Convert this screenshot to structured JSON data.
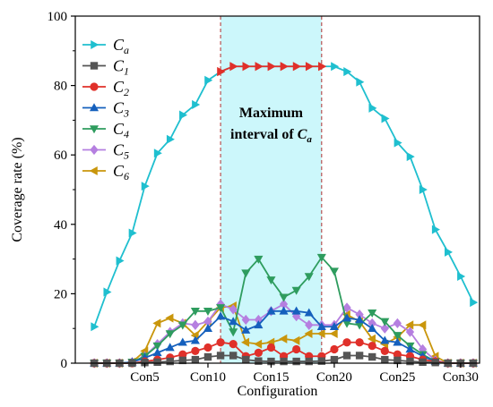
{
  "chart_data": {
    "type": "line",
    "xlabel": "Configuration",
    "ylabel": "Coverage rate (%)",
    "ylim": [
      0,
      100
    ],
    "xlim": [
      -0.5,
      31.5
    ],
    "yticks": [
      0,
      20,
      40,
      60,
      80,
      100
    ],
    "xticks": [
      {
        "x": 5,
        "label": "Con5"
      },
      {
        "x": 10,
        "label": "Con10"
      },
      {
        "x": 15,
        "label": "Con15"
      },
      {
        "x": 20,
        "label": "Con20"
      },
      {
        "x": 25,
        "label": "Con25"
      },
      {
        "x": 30,
        "label": "Con30"
      }
    ],
    "legend_position": "top-left",
    "highlight": {
      "x_start": 11,
      "x_end": 19,
      "color": "#ccf7fb",
      "label_line1": "Maximum",
      "label_line2": "interval of ",
      "label_symbol": "C",
      "label_sub": "a"
    },
    "series": [
      {
        "symbol": "C",
        "sub": "a",
        "color": "#1fbfcf",
        "marker": "tri-right",
        "values": [
          10.5,
          20.5,
          29.5,
          37.5,
          51,
          60.5,
          64.5,
          71.5,
          74.5,
          81.5,
          84,
          85.5,
          85.5,
          85.5,
          85.5,
          85.5,
          85.5,
          85.5,
          85.5,
          85.5,
          84,
          81,
          73.5,
          70.5,
          63.5,
          59.5,
          50,
          38.5,
          32,
          25,
          17.5
        ],
        "highlight_color": "#e0302a"
      },
      {
        "symbol": "C",
        "sub": "1",
        "color": "#555555",
        "marker": "square",
        "values": [
          0,
          0,
          0,
          0,
          0.2,
          0.3,
          0.5,
          0.8,
          1,
          1.8,
          2.2,
          2.2,
          1,
          0.6,
          0.5,
          0.5,
          0.5,
          0.5,
          0.6,
          1,
          2.2,
          2.2,
          1.8,
          1,
          0.8,
          0.5,
          0.3,
          0.2,
          0,
          0,
          0
        ]
      },
      {
        "symbol": "C",
        "sub": "2",
        "color": "#e0302a",
        "marker": "circle",
        "values": [
          0,
          0,
          0,
          0,
          0.5,
          1,
          1.6,
          2.5,
          3.5,
          4.5,
          6,
          5.5,
          2,
          3,
          4.5,
          2,
          4,
          2,
          2,
          4,
          6,
          6,
          5,
          3.5,
          2.5,
          2,
          1,
          0.5,
          0,
          0,
          0
        ]
      },
      {
        "symbol": "C",
        "sub": "3",
        "color": "#1560bd",
        "marker": "tri-up",
        "values": [
          0,
          0,
          0,
          0.3,
          1.5,
          3,
          4.5,
          6,
          6.5,
          10,
          13.5,
          12,
          9.5,
          11,
          15,
          15,
          15,
          14.5,
          10.5,
          10.5,
          13,
          12.5,
          10,
          6.5,
          6,
          4,
          2,
          0.5,
          0,
          0,
          0
        ]
      },
      {
        "symbol": "C",
        "sub": "4",
        "color": "#2e9c5e",
        "marker": "tri-down",
        "values": [
          0,
          0,
          0,
          0.3,
          2,
          5,
          8.5,
          11,
          15,
          15,
          16,
          9,
          26,
          30,
          24,
          19,
          21,
          25,
          30.5,
          26.5,
          11.5,
          11,
          14.5,
          12,
          8,
          5,
          2.5,
          0.5,
          0,
          0,
          0
        ]
      },
      {
        "symbol": "C",
        "sub": "5",
        "color": "#b57fe0",
        "marker": "diamond",
        "values": [
          0,
          0,
          0,
          0.3,
          2,
          5.5,
          9,
          11.5,
          11,
          12,
          17,
          15.5,
          12.5,
          12.5,
          15,
          17,
          13.5,
          11,
          11,
          11,
          16,
          14,
          11.5,
          10,
          11.5,
          9,
          4,
          0.8,
          0,
          0,
          0
        ]
      },
      {
        "symbol": "C",
        "sub": "6",
        "color": "#c9960c",
        "marker": "tri-left",
        "values": [
          0,
          0,
          0,
          0.3,
          3.5,
          11.5,
          13,
          11.5,
          8,
          12,
          16,
          16.5,
          6,
          5.5,
          6,
          7,
          6.5,
          8.5,
          8.5,
          8.5,
          14,
          12,
          7,
          5.5,
          7.5,
          11,
          11,
          2,
          0,
          0,
          0
        ]
      }
    ]
  }
}
